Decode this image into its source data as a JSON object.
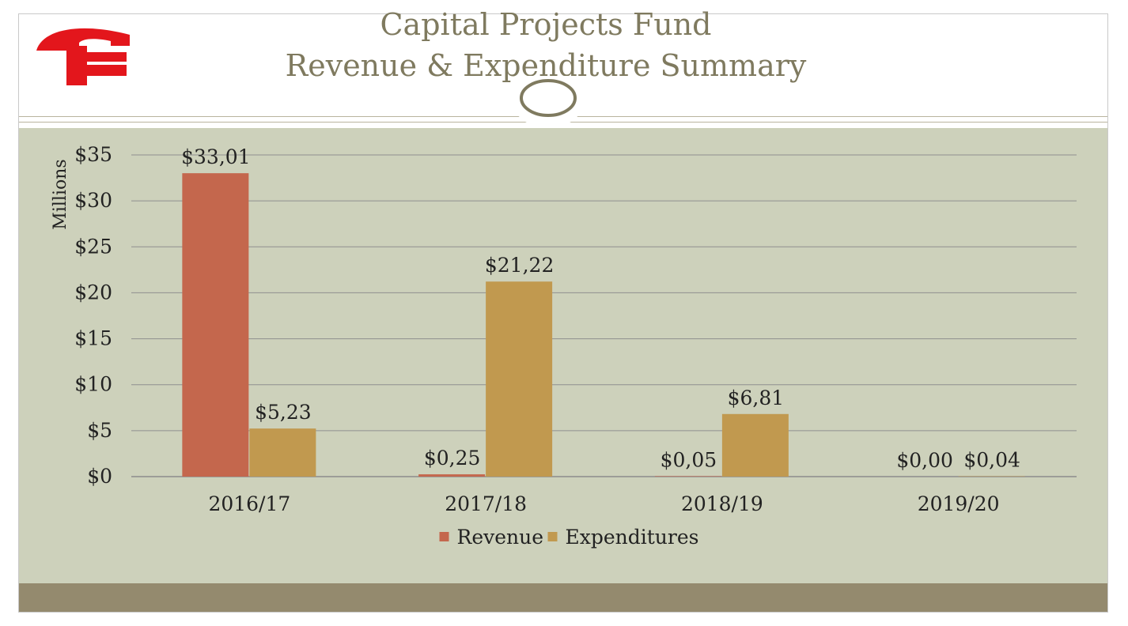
{
  "slide": {
    "title_line1": "Capital Projects Fund",
    "title_line2": "Revenue & Expenditure Summary",
    "logo_icon": "cf-logo-icon",
    "ornament_icon": "circle-ornament-icon",
    "colors": {
      "plot_background": "#cdd1bb",
      "footer": "#948a6e",
      "title": "#7f7a5f",
      "logo": "#e3161c"
    }
  },
  "chart_data": {
    "type": "bar",
    "title": "Capital Projects Fund Revenue & Expenditure Summary",
    "ylabel": "Millions",
    "xlabel": "",
    "ylim": [
      0,
      35
    ],
    "yticks": [
      0,
      5,
      10,
      15,
      20,
      25,
      30,
      35
    ],
    "ytick_labels": [
      "$0",
      "$5",
      "$10",
      "$15",
      "$20",
      "$25",
      "$30",
      "$35"
    ],
    "categories": [
      "2016/17",
      "2017/18",
      "2018/19",
      "2019/20"
    ],
    "grid": true,
    "legend_position": "bottom",
    "series": [
      {
        "name": "Revenue",
        "color": "#c4674d",
        "values": [
          33.01,
          0.25,
          0.05,
          0.0
        ],
        "labels": [
          "$33,01",
          "$0,25",
          "$0,05",
          "$0,00"
        ]
      },
      {
        "name": "Expenditures",
        "color": "#c1994f",
        "values": [
          5.23,
          21.22,
          6.81,
          0.04
        ],
        "labels": [
          "$5,23",
          "$21,22",
          "$6,81",
          "$0,04"
        ]
      }
    ]
  }
}
